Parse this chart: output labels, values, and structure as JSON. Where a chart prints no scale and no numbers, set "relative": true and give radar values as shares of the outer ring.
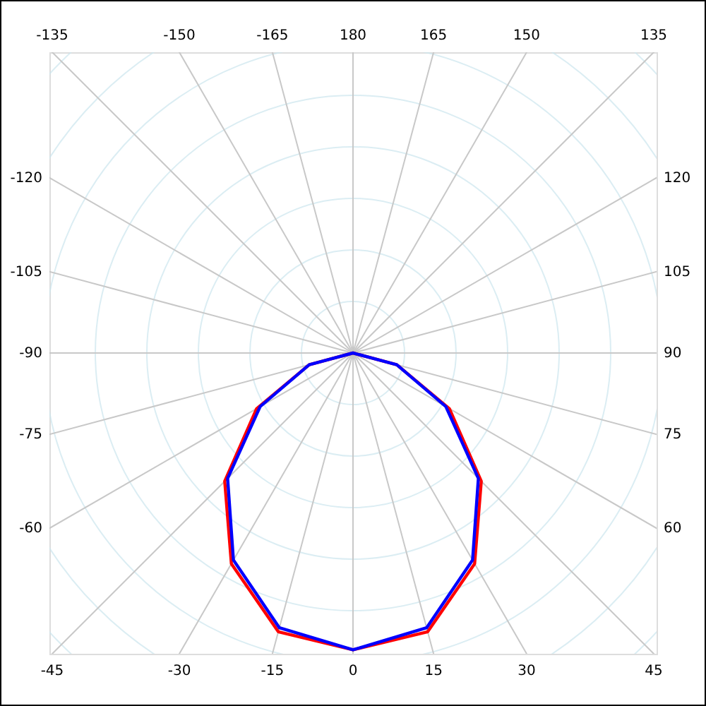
{
  "chart_data": {
    "type": "radar",
    "relative": true,
    "grid": true,
    "categories": [
      "180",
      "165",
      "150",
      "135",
      "120",
      "105",
      "90",
      "75",
      "60",
      "45",
      "30",
      "15",
      "0",
      "-15",
      "-30",
      "-45",
      "-60",
      "-75",
      "-90",
      "-105",
      "-120",
      "-135",
      "-150",
      "-165"
    ],
    "series": [
      {
        "color": "#ff0000",
        "values": [
          0,
          0,
          0,
          0,
          0,
          0,
          0,
          0.11,
          0.27,
          0.44,
          0.59,
          0.7,
          0.72,
          0.7,
          0.59,
          0.44,
          0.27,
          0.11,
          0,
          0,
          0,
          0,
          0,
          0
        ]
      },
      {
        "color": "#0000ff",
        "values": [
          0,
          0,
          0,
          0,
          0,
          0,
          0,
          0.11,
          0.26,
          0.43,
          0.58,
          0.69,
          0.72,
          0.69,
          0.58,
          0.43,
          0.26,
          0.11,
          0,
          0,
          0,
          0,
          0,
          0
        ]
      }
    ]
  }
}
